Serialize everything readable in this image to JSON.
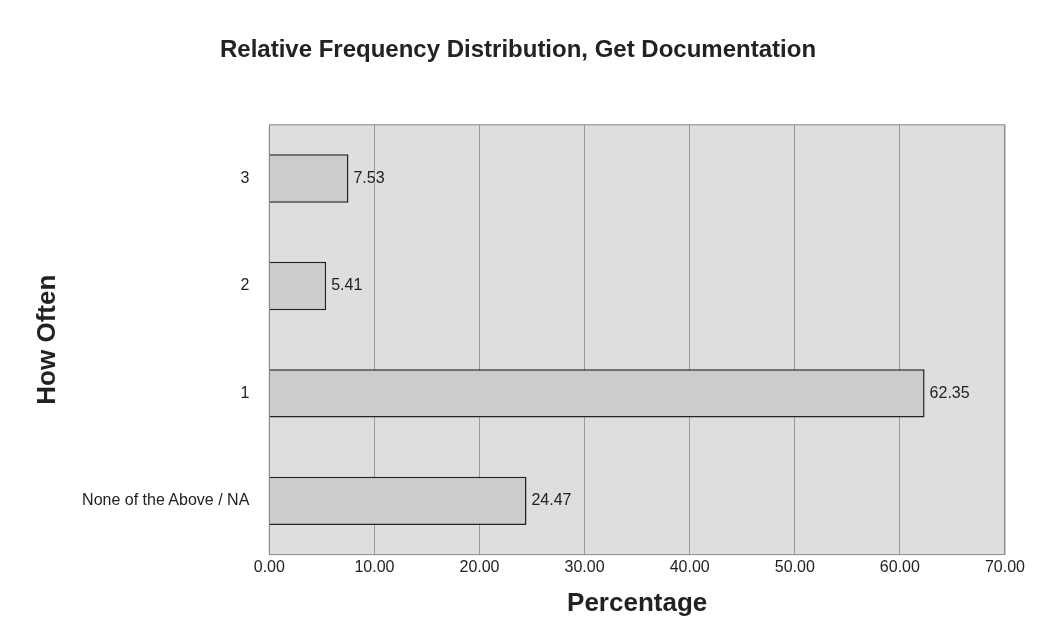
{
  "chart_data": {
    "type": "bar",
    "orientation": "horizontal",
    "title": "Relative Frequency Distribution, Get Documentation",
    "xlabel": "Percentage",
    "ylabel": "How Often",
    "categories": [
      "3",
      "2",
      "1",
      "None of the Above / NA"
    ],
    "values": [
      7.53,
      5.41,
      62.35,
      24.47
    ],
    "color": "#cccccc",
    "xlim": [
      0,
      70
    ],
    "xticks": [
      {
        "value": 0,
        "label": "0.00"
      },
      {
        "value": 10,
        "label": "10.00"
      },
      {
        "value": 20,
        "label": "20.00"
      },
      {
        "value": 30,
        "label": "30.00"
      },
      {
        "value": 40,
        "label": "40.00"
      },
      {
        "value": 50,
        "label": "50.00"
      },
      {
        "value": 60,
        "label": "60.00"
      },
      {
        "value": 70,
        "label": "70.00"
      }
    ],
    "grid": "x",
    "data_labels": true,
    "legend": false
  }
}
